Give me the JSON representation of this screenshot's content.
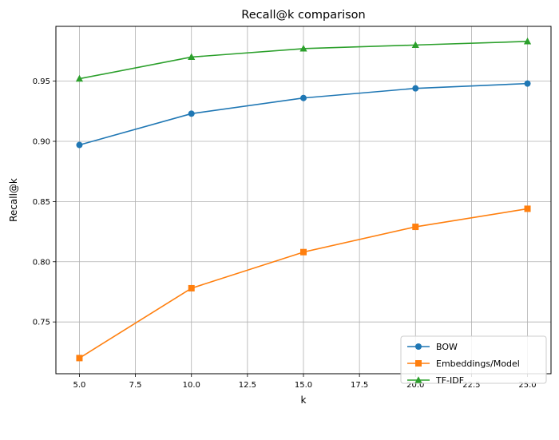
{
  "chart_data": {
    "type": "line",
    "title": "Recall@k comparison",
    "xlabel": "k",
    "ylabel": "Recall@k",
    "x": [
      5,
      10,
      15,
      20,
      25
    ],
    "xlim": [
      3.95,
      26.05
    ],
    "ylim": [
      0.707,
      0.9955
    ],
    "xticks": [
      5.0,
      7.5,
      10.0,
      12.5,
      15.0,
      17.5,
      20.0,
      22.5,
      25.0
    ],
    "xtick_labels": [
      "5.0",
      "7.5",
      "10.0",
      "12.5",
      "15.0",
      "17.5",
      "20.0",
      "22.5",
      "25.0"
    ],
    "yticks": [
      0.75,
      0.8,
      0.85,
      0.9,
      0.95
    ],
    "ytick_labels": [
      "0.75",
      "0.80",
      "0.85",
      "0.90",
      "0.95"
    ],
    "grid": true,
    "legend_position": "lower-right",
    "series": [
      {
        "name": "BOW",
        "marker": "circle",
        "color": "#1f77b4",
        "values": [
          0.897,
          0.923,
          0.936,
          0.944,
          0.948
        ]
      },
      {
        "name": "Embeddings/Model",
        "marker": "square",
        "color": "#ff7f0e",
        "values": [
          0.72,
          0.778,
          0.808,
          0.829,
          0.844
        ]
      },
      {
        "name": "TF-IDF",
        "marker": "triangle",
        "color": "#2ca02c",
        "values": [
          0.952,
          0.97,
          0.977,
          0.98,
          0.983
        ]
      }
    ]
  }
}
